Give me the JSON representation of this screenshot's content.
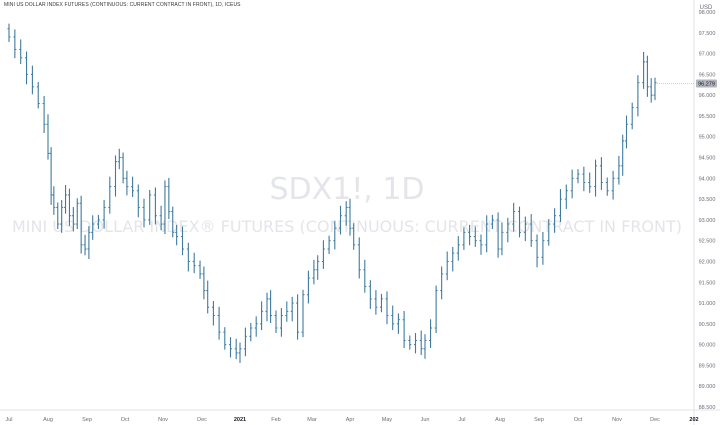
{
  "chart_title": "MINI US DOLLAR INDEX FUTURES (CONTINUOUS: CURRENT CONTRACT IN FRONT), 1D, ICEUS",
  "watermark": {
    "symbol": "SDX1!, 1D",
    "name": "MINI US DOLLAR INDEX® FUTURES (CONTINUOUS: CURRENT CONTRACT IN FRONT)"
  },
  "currency_label": "USD",
  "last_price_label": "96.279",
  "colors": {
    "up": "#26a69a",
    "bar": "#3f7a9f",
    "price_tag": "#b2b5be"
  },
  "chart_data": {
    "type": "ohlc",
    "title": "MINI US DOLLAR INDEX FUTURES (CONTINUOUS: CURRENT CONTRACT IN FRONT), 1D, ICEUS",
    "ylabel": "USD",
    "ylim": [
      88.5,
      98.0
    ],
    "y_ticks": [
      "98.000",
      "97.500",
      "97.000",
      "96.500",
      "96.000",
      "95.500",
      "95.000",
      "94.500",
      "94.000",
      "93.500",
      "93.000",
      "92.500",
      "92.000",
      "91.500",
      "91.000",
      "90.500",
      "90.000",
      "89.500",
      "89.000",
      "88.500"
    ],
    "x_ticks": [
      "Jul",
      "Aug",
      "Sep",
      "Oct",
      "Nov",
      "Dec",
      "2021",
      "Feb",
      "Mar",
      "Apr",
      "May",
      "Jun",
      "Jul",
      "Aug",
      "Sep",
      "Oct",
      "Nov",
      "Dec",
      "202"
    ],
    "x_tick_month_index": [
      0,
      1,
      2,
      3,
      4,
      5,
      6,
      7,
      8,
      9,
      10,
      11,
      12,
      13,
      14,
      15,
      16,
      17,
      18
    ],
    "series": [
      {
        "values": [
          {
            "m": 0.0,
            "c": 97.4
          },
          {
            "m": 0.15,
            "c": 97.1
          },
          {
            "m": 0.3,
            "c": 96.9
          },
          {
            "m": 0.45,
            "c": 96.5
          },
          {
            "m": 0.6,
            "c": 96.2
          },
          {
            "m": 0.75,
            "c": 95.8
          },
          {
            "m": 0.9,
            "c": 95.3
          },
          {
            "m": 1.0,
            "c": 94.6
          },
          {
            "m": 1.08,
            "c": 93.6
          },
          {
            "m": 1.15,
            "c": 93.3
          },
          {
            "m": 1.25,
            "c": 92.9
          },
          {
            "m": 1.35,
            "c": 93.3
          },
          {
            "m": 1.45,
            "c": 93.6
          },
          {
            "m": 1.55,
            "c": 93.1
          },
          {
            "m": 1.65,
            "c": 92.9
          },
          {
            "m": 1.75,
            "c": 93.4
          },
          {
            "m": 1.85,
            "c": 92.4
          },
          {
            "m": 1.95,
            "c": 92.3
          },
          {
            "m": 2.05,
            "c": 92.7
          },
          {
            "m": 2.15,
            "c": 92.9
          },
          {
            "m": 2.3,
            "c": 93.0
          },
          {
            "m": 2.45,
            "c": 93.3
          },
          {
            "m": 2.6,
            "c": 93.8
          },
          {
            "m": 2.75,
            "c": 94.4
          },
          {
            "m": 2.85,
            "c": 94.5
          },
          {
            "m": 2.95,
            "c": 94.0
          },
          {
            "m": 3.05,
            "c": 93.8
          },
          {
            "m": 3.2,
            "c": 93.7
          },
          {
            "m": 3.35,
            "c": 93.3
          },
          {
            "m": 3.5,
            "c": 93.0
          },
          {
            "m": 3.65,
            "c": 93.6
          },
          {
            "m": 3.8,
            "c": 93.1
          },
          {
            "m": 3.95,
            "c": 92.9
          },
          {
            "m": 4.05,
            "c": 93.8
          },
          {
            "m": 4.15,
            "c": 93.2
          },
          {
            "m": 4.25,
            "c": 92.7
          },
          {
            "m": 4.35,
            "c": 92.6
          },
          {
            "m": 4.5,
            "c": 92.3
          },
          {
            "m": 4.65,
            "c": 92.0
          },
          {
            "m": 4.8,
            "c": 91.9
          },
          {
            "m": 4.95,
            "c": 91.7
          },
          {
            "m": 5.05,
            "c": 91.3
          },
          {
            "m": 5.15,
            "c": 90.9
          },
          {
            "m": 5.3,
            "c": 90.7
          },
          {
            "m": 5.45,
            "c": 90.3
          },
          {
            "m": 5.6,
            "c": 90.0
          },
          {
            "m": 5.75,
            "c": 89.9
          },
          {
            "m": 5.9,
            "c": 89.8
          },
          {
            "m": 6.0,
            "c": 89.9
          },
          {
            "m": 6.15,
            "c": 90.2
          },
          {
            "m": 6.3,
            "c": 90.4
          },
          {
            "m": 6.45,
            "c": 90.5
          },
          {
            "m": 6.6,
            "c": 90.8
          },
          {
            "m": 6.75,
            "c": 91.1
          },
          {
            "m": 6.85,
            "c": 90.7
          },
          {
            "m": 7.0,
            "c": 90.4
          },
          {
            "m": 7.15,
            "c": 90.7
          },
          {
            "m": 7.3,
            "c": 90.8
          },
          {
            "m": 7.45,
            "c": 91.0
          },
          {
            "m": 7.6,
            "c": 90.3
          },
          {
            "m": 7.75,
            "c": 91.2
          },
          {
            "m": 7.9,
            "c": 91.6
          },
          {
            "m": 8.05,
            "c": 91.8
          },
          {
            "m": 8.15,
            "c": 92.0
          },
          {
            "m": 8.3,
            "c": 92.3
          },
          {
            "m": 8.45,
            "c": 92.5
          },
          {
            "m": 8.6,
            "c": 92.8
          },
          {
            "m": 8.75,
            "c": 93.1
          },
          {
            "m": 8.9,
            "c": 93.3
          },
          {
            "m": 9.0,
            "c": 92.8
          },
          {
            "m": 9.1,
            "c": 92.4
          },
          {
            "m": 9.25,
            "c": 91.8
          },
          {
            "m": 9.4,
            "c": 91.4
          },
          {
            "m": 9.55,
            "c": 91.1
          },
          {
            "m": 9.7,
            "c": 90.9
          },
          {
            "m": 9.85,
            "c": 91.1
          },
          {
            "m": 10.0,
            "c": 90.7
          },
          {
            "m": 10.15,
            "c": 90.5
          },
          {
            "m": 10.3,
            "c": 90.6
          },
          {
            "m": 10.45,
            "c": 90.1
          },
          {
            "m": 10.6,
            "c": 90.0
          },
          {
            "m": 10.75,
            "c": 90.1
          },
          {
            "m": 10.9,
            "c": 89.9
          },
          {
            "m": 11.0,
            "c": 90.1
          },
          {
            "m": 11.15,
            "c": 90.4
          },
          {
            "m": 11.3,
            "c": 91.3
          },
          {
            "m": 11.45,
            "c": 91.7
          },
          {
            "m": 11.6,
            "c": 92.0
          },
          {
            "m": 11.75,
            "c": 92.2
          },
          {
            "m": 11.9,
            "c": 92.4
          },
          {
            "m": 12.05,
            "c": 92.7
          },
          {
            "m": 12.2,
            "c": 92.6
          },
          {
            "m": 12.35,
            "c": 92.5
          },
          {
            "m": 12.5,
            "c": 92.4
          },
          {
            "m": 12.65,
            "c": 92.9
          },
          {
            "m": 12.8,
            "c": 93.0
          },
          {
            "m": 12.95,
            "c": 92.3
          },
          {
            "m": 13.05,
            "c": 92.7
          },
          {
            "m": 13.2,
            "c": 92.9
          },
          {
            "m": 13.35,
            "c": 93.2
          },
          {
            "m": 13.5,
            "c": 92.7
          },
          {
            "m": 13.65,
            "c": 92.9
          },
          {
            "m": 13.8,
            "c": 92.5
          },
          {
            "m": 13.95,
            "c": 92.1
          },
          {
            "m": 14.1,
            "c": 92.5
          },
          {
            "m": 14.25,
            "c": 92.9
          },
          {
            "m": 14.4,
            "c": 93.1
          },
          {
            "m": 14.55,
            "c": 93.5
          },
          {
            "m": 14.7,
            "c": 93.7
          },
          {
            "m": 14.85,
            "c": 94.0
          },
          {
            "m": 15.0,
            "c": 94.1
          },
          {
            "m": 15.15,
            "c": 93.9
          },
          {
            "m": 15.3,
            "c": 93.8
          },
          {
            "m": 15.45,
            "c": 94.3
          },
          {
            "m": 15.6,
            "c": 93.9
          },
          {
            "m": 15.75,
            "c": 93.7
          },
          {
            "m": 15.9,
            "c": 94.0
          },
          {
            "m": 16.05,
            "c": 94.3
          },
          {
            "m": 16.15,
            "c": 94.9
          },
          {
            "m": 16.25,
            "c": 95.3
          },
          {
            "m": 16.4,
            "c": 95.7
          },
          {
            "m": 16.55,
            "c": 96.3
          },
          {
            "m": 16.7,
            "c": 96.8
          },
          {
            "m": 16.8,
            "c": 96.2
          },
          {
            "m": 16.9,
            "c": 96.0
          },
          {
            "m": 17.0,
            "c": 96.3
          }
        ]
      }
    ],
    "grid": false,
    "legend": "none"
  }
}
